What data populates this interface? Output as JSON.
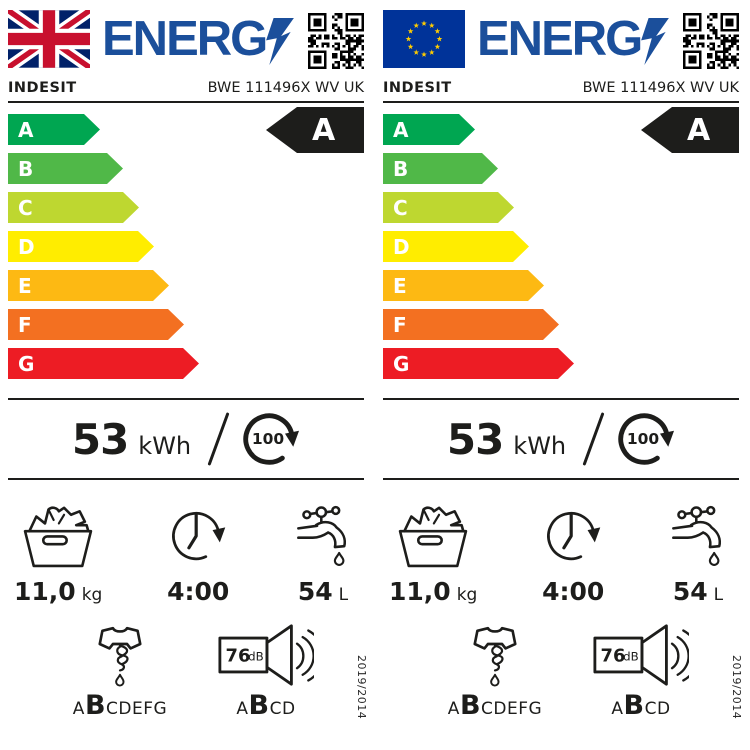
{
  "colors": {
    "logo_blue": "#1B4F9B",
    "rating_arrow": "#1D1D1B",
    "uk_flag_blue": "#012169",
    "uk_flag_red": "#C8102E",
    "eu_flag_blue": "#003399",
    "eu_flag_stars": "#FFCC00"
  },
  "icons": {
    "header": [
      "flag",
      "lightning-bolt-icon",
      "qr-code"
    ],
    "cycles": "cycle-arrow-icon",
    "load": "laundry-basket-icon",
    "duration": "clock-icon",
    "water": "tap-icon",
    "spin": "spin-dry-icon",
    "noise": "speaker-icon"
  },
  "labels": [
    {
      "flag": "UK flag",
      "logo_text": "ENERG",
      "brand": "INDESIT",
      "model": "BWE 111496X WV UK",
      "rating": "A",
      "scale": [
        {
          "letter": "A",
          "color": "#00A651"
        },
        {
          "letter": "B",
          "color": "#50B848"
        },
        {
          "letter": "C",
          "color": "#BED730"
        },
        {
          "letter": "D",
          "color": "#FFED00"
        },
        {
          "letter": "E",
          "color": "#FDB913"
        },
        {
          "letter": "F",
          "color": "#F37021"
        },
        {
          "letter": "G",
          "color": "#ED1C24"
        }
      ],
      "energy": {
        "value": "53",
        "unit": "kWh",
        "per_cycles": "100"
      },
      "capacity": {
        "value": "11,0",
        "unit": "kg"
      },
      "duration": "4:00",
      "water": {
        "value": "54",
        "unit": "L"
      },
      "spin": {
        "class_before": "A",
        "class_active": "B",
        "class_after": "CDEFG"
      },
      "noise": {
        "db_value": "76",
        "db_unit": "dB",
        "class_before": "A",
        "class_active": "B",
        "class_after": "CD"
      },
      "regulation": "2019/2014"
    },
    {
      "flag": "EU flag",
      "logo_text": "ENERG",
      "brand": "INDESIT",
      "model": "BWE 111496X WV UK",
      "rating": "A",
      "scale": [
        {
          "letter": "A",
          "color": "#00A651"
        },
        {
          "letter": "B",
          "color": "#50B848"
        },
        {
          "letter": "C",
          "color": "#BED730"
        },
        {
          "letter": "D",
          "color": "#FFED00"
        },
        {
          "letter": "E",
          "color": "#FDB913"
        },
        {
          "letter": "F",
          "color": "#F37021"
        },
        {
          "letter": "G",
          "color": "#ED1C24"
        }
      ],
      "energy": {
        "value": "53",
        "unit": "kWh",
        "per_cycles": "100"
      },
      "capacity": {
        "value": "11,0",
        "unit": "kg"
      },
      "duration": "4:00",
      "water": {
        "value": "54",
        "unit": "L"
      },
      "spin": {
        "class_before": "A",
        "class_active": "B",
        "class_after": "CDEFG"
      },
      "noise": {
        "db_value": "76",
        "db_unit": "dB",
        "class_before": "A",
        "class_active": "B",
        "class_after": "CD"
      },
      "regulation": "2019/2014"
    }
  ]
}
